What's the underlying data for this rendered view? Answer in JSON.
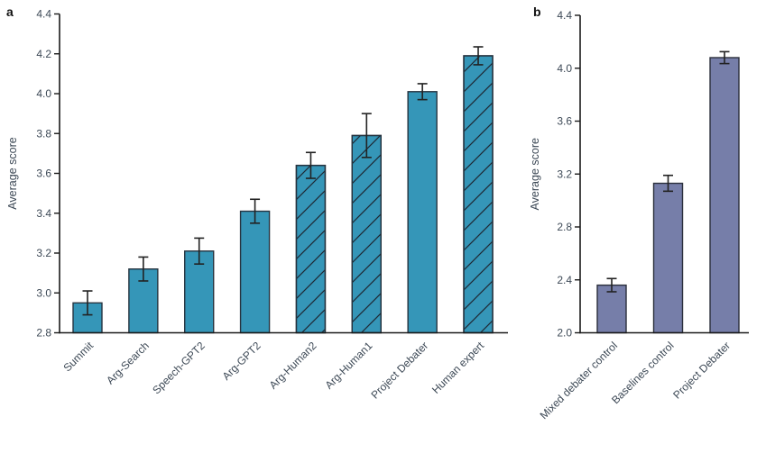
{
  "figure": {
    "background": "#ffffff"
  },
  "chart_data": [
    {
      "panel_label": "a",
      "type": "bar",
      "title": "",
      "xlabel": "",
      "ylabel": "Average score",
      "categories": [
        "Summit",
        "Arg-Search",
        "Speech-GPT2",
        "Arg-GPT2",
        "Arg-Human2",
        "Arg-Human1",
        "Project Debater",
        "Human expert"
      ],
      "values": [
        2.95,
        3.12,
        3.21,
        3.41,
        3.64,
        3.79,
        4.01,
        4.19
      ],
      "errors": [
        0.06,
        0.06,
        0.065,
        0.06,
        0.065,
        0.11,
        0.04,
        0.045
      ],
      "hatched": [
        false,
        false,
        false,
        false,
        true,
        true,
        false,
        true
      ],
      "ylim": [
        2.8,
        4.4
      ],
      "ytick_step": 0.2,
      "ytick_labels": [
        "2.8",
        "3.0",
        "3.2",
        "3.4",
        "3.6",
        "3.8",
        "4.0",
        "4.2",
        "4.4"
      ],
      "x_tick_rotation": 45,
      "grid": false,
      "legend": null,
      "bar_color": "#3596b8",
      "bar_edge": "#273440",
      "hatch_color": "#1d2834",
      "error_color": "#222222",
      "axis_color": "#1a1a1a",
      "text_color": "#3d4956"
    },
    {
      "panel_label": "b",
      "type": "bar",
      "title": "",
      "xlabel": "",
      "ylabel": "Average score",
      "categories": [
        "Mixed debater control",
        "Baselines control",
        "Project Debater"
      ],
      "values": [
        2.36,
        3.13,
        4.08
      ],
      "errors": [
        0.05,
        0.06,
        0.045
      ],
      "hatched": [
        false,
        false,
        false
      ],
      "ylim": [
        2.0,
        4.4
      ],
      "ytick_step": 0.4,
      "ytick_labels": [
        "2.0",
        "2.4",
        "2.8",
        "3.2",
        "3.6",
        "4.0",
        "4.4"
      ],
      "x_tick_rotation": 45,
      "grid": false,
      "legend": null,
      "bar_color": "#767ea9",
      "bar_edge": "#2b2f3b",
      "hatch_color": "#1d2834",
      "error_color": "#222222",
      "axis_color": "#1a1a1a",
      "text_color": "#3d4956"
    }
  ]
}
